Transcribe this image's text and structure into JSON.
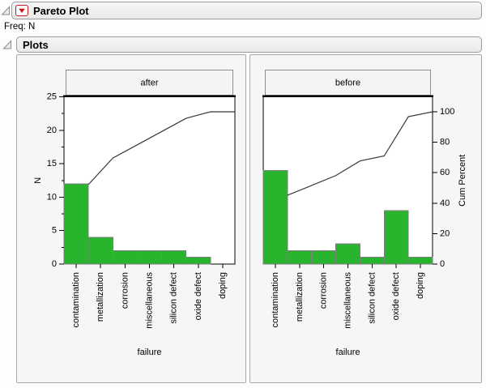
{
  "header": {
    "title": "Pareto Plot",
    "freq": "Freq: N",
    "section": "Plots"
  },
  "icons": {
    "red_triangle_menu": "red-triangle-down",
    "outline_open": "gray-disclosure-triangle"
  },
  "colors": {
    "bar_fill": "#28b42c",
    "bar_border": "#7f7f7f",
    "cum_line": "#383838",
    "frame": "#000000",
    "accent_red": "#c61a1a",
    "panel_bg": "#f6f6f6",
    "title_box_bg": "#f4f4f4",
    "title_box_border": "#8e8e8e"
  },
  "chart_data": [
    {
      "type": "bar",
      "subtype": "pareto-with-cumulative-line",
      "group": "after",
      "categories": [
        "contamination",
        "metallization",
        "corrosion",
        "miscellaneous",
        "silicon defect",
        "oxide defect",
        "doping"
      ],
      "values": [
        12,
        4,
        2,
        2,
        2,
        1,
        0
      ],
      "cum_percent": [
        52.2,
        69.6,
        78.3,
        87.0,
        95.7,
        100,
        100
      ],
      "xlabel": "failure",
      "ylabel": "N",
      "ylim": [
        0,
        25
      ],
      "yticks": [
        0,
        5,
        10,
        15,
        20,
        25
      ],
      "grid": "off",
      "legend": "none"
    },
    {
      "type": "bar",
      "subtype": "pareto-with-cumulative-line",
      "group": "before",
      "categories": [
        "contamination",
        "metallization",
        "corrosion",
        "miscellaneous",
        "silicon defect",
        "oxide defect",
        "doping"
      ],
      "values": [
        14,
        2,
        2,
        3,
        1,
        8,
        1
      ],
      "cum_percent": [
        45.2,
        51.6,
        58.1,
        67.7,
        71.0,
        96.8,
        100
      ],
      "xlabel": "failure",
      "y2label": "Cum Percent",
      "y2lim": [
        0,
        100
      ],
      "y2ticks": [
        0,
        20,
        40,
        60,
        80,
        100
      ],
      "grid": "off",
      "legend": "none"
    }
  ]
}
